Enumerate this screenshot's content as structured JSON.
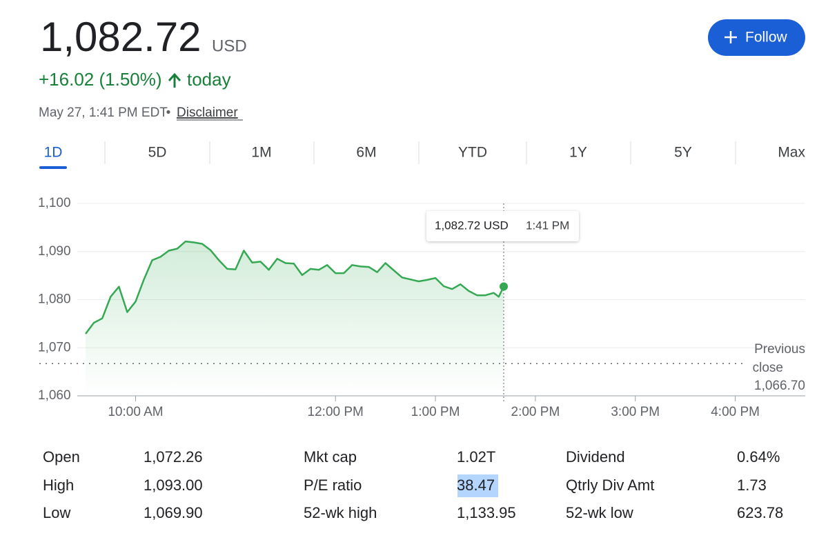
{
  "header": {
    "price": "1,082.72",
    "currency": "USD",
    "change": "+16.02 (1.50%)",
    "change_suffix": "today",
    "timestamp": "May 27, 1:41 PM EDT",
    "separator": "•",
    "disclaimer": "Disclaimer",
    "follow_button": "Follow"
  },
  "tabs": {
    "items": [
      "1D",
      "5D",
      "1M",
      "6M",
      "YTD",
      "1Y",
      "5Y",
      "Max"
    ],
    "active": 0
  },
  "chart_data": {
    "type": "line",
    "color": "#34a853",
    "x": [
      570,
      575,
      580,
      585,
      590,
      595,
      600,
      605,
      610,
      615,
      620,
      625,
      630,
      635,
      640,
      645,
      650,
      655,
      660,
      665,
      670,
      675,
      680,
      685,
      690,
      695,
      700,
      705,
      710,
      715,
      720,
      725,
      730,
      735,
      740,
      745,
      750,
      755,
      760,
      765,
      770,
      775,
      780,
      785,
      790,
      795,
      800,
      805,
      810,
      815,
      818,
      821
    ],
    "values": [
      1072.9,
      1075.2,
      1076.1,
      1080.6,
      1082.7,
      1077.4,
      1079.6,
      1084.2,
      1088.2,
      1088.9,
      1090.2,
      1090.6,
      1092.1,
      1091.9,
      1091.6,
      1090.3,
      1088.2,
      1086.4,
      1086.3,
      1090.2,
      1087.7,
      1087.9,
      1086.2,
      1088.5,
      1087.6,
      1087.5,
      1085.1,
      1086.4,
      1086.2,
      1087.2,
      1085.5,
      1085.5,
      1087.2,
      1086.9,
      1086.8,
      1085.7,
      1087.6,
      1086.1,
      1084.6,
      1084.2,
      1083.8,
      1084.1,
      1084.5,
      1082.8,
      1082.2,
      1083.2,
      1081.8,
      1080.9,
      1080.9,
      1081.4,
      1080.6,
      1082.72
    ],
    "xlim": [
      565,
      1002
    ],
    "xticks": [
      {
        "value": 600,
        "label": "10:00 AM"
      },
      {
        "value": 720,
        "label": "12:00 PM"
      },
      {
        "value": 780,
        "label": "1:00 PM"
      },
      {
        "value": 840,
        "label": "2:00 PM"
      },
      {
        "value": 900,
        "label": "3:00 PM"
      },
      {
        "value": 960,
        "label": "4:00 PM"
      }
    ],
    "ylim": [
      1060,
      1100
    ],
    "yticks": [
      {
        "value": 1060,
        "label": "1,060"
      },
      {
        "value": 1070,
        "label": "1,070"
      },
      {
        "value": 1080,
        "label": "1,080"
      },
      {
        "value": 1090,
        "label": "1,090"
      },
      {
        "value": 1100,
        "label": "1,100"
      }
    ],
    "grid": true,
    "previous_close": {
      "label_line1": "Previous",
      "label_line2": "close",
      "value": 1066.7,
      "value_label": "1,066.70"
    },
    "cursor_x": 821,
    "tooltip": {
      "price": "1,082.72 USD",
      "time": "1:41 PM"
    }
  },
  "stats": [
    [
      [
        "Open",
        "1,072.26"
      ],
      [
        "Mkt cap",
        "1.02T"
      ],
      [
        "Dividend",
        "0.64%"
      ]
    ],
    [
      [
        "High",
        "1,093.00"
      ],
      [
        "P/E ratio",
        "38.47"
      ],
      [
        "Qtrly Div Amt",
        "1.73"
      ]
    ],
    [
      [
        "Low",
        "1,069.90"
      ],
      [
        "52-wk high",
        "1,133.95"
      ],
      [
        "52-wk low",
        "623.78"
      ]
    ]
  ]
}
